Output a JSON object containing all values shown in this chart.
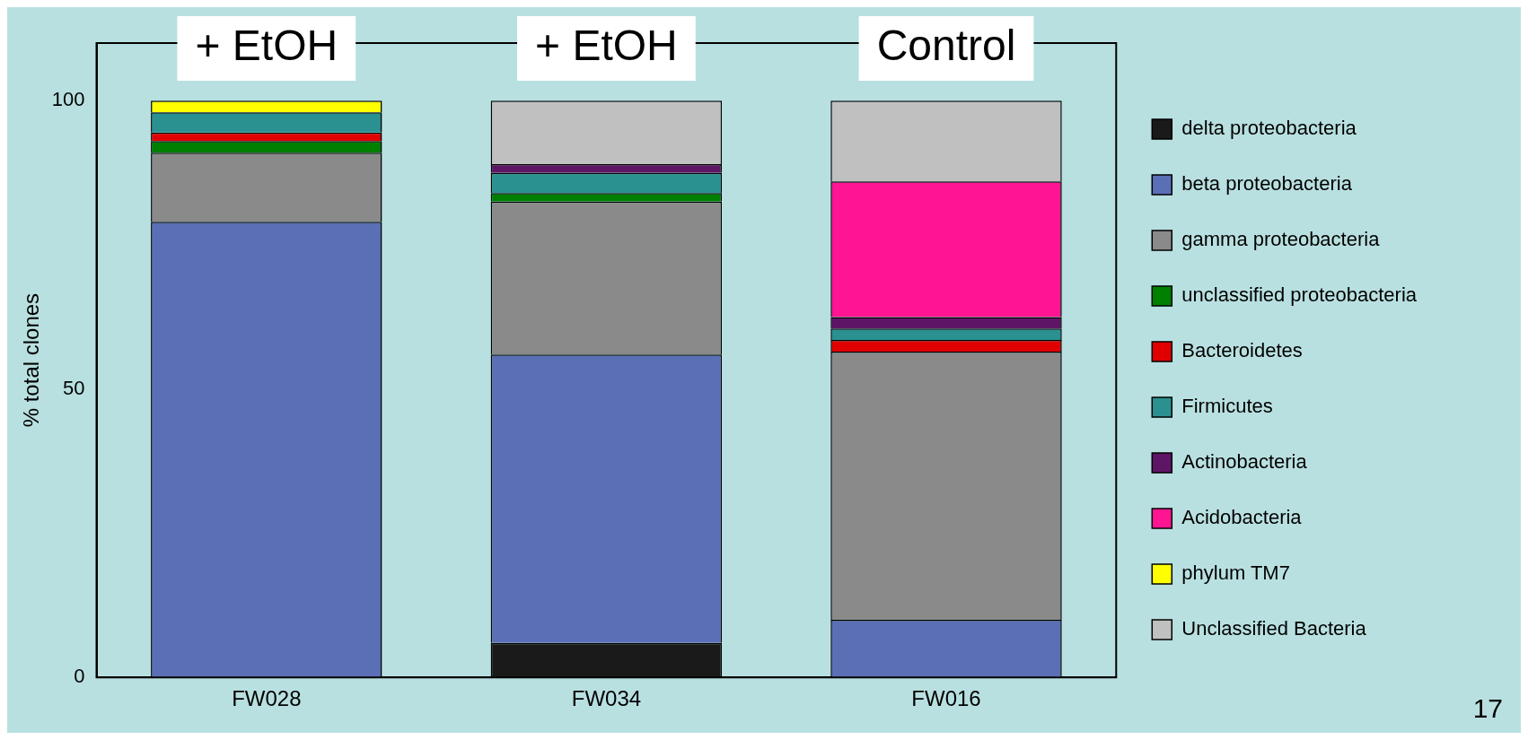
{
  "chart_data": {
    "type": "bar",
    "stacked": true,
    "ylabel": "% total clones",
    "categories": [
      "FW028",
      "FW034",
      "FW016"
    ],
    "series": [
      {
        "name": "delta proteobacteria",
        "color": "#1a1a1a",
        "values": [
          0,
          6,
          0
        ]
      },
      {
        "name": "beta proteobacteria",
        "color": "#5a6fb5",
        "values": [
          79,
          50,
          10
        ]
      },
      {
        "name": "gamma proteobacteria",
        "color": "#8a8a8a",
        "values": [
          12,
          26.5,
          46.5
        ]
      },
      {
        "name": "unclassified proteobacteria",
        "color": "#008000",
        "values": [
          2,
          1.5,
          0
        ]
      },
      {
        "name": "Bacteroidetes",
        "color": "#e00000",
        "values": [
          1.5,
          0,
          2
        ]
      },
      {
        "name": "Firmicutes",
        "color": "#2a9090",
        "values": [
          3.5,
          3.5,
          2
        ]
      },
      {
        "name": "Actinobacteria",
        "color": "#5e1566",
        "values": [
          0,
          1.5,
          2
        ]
      },
      {
        "name": "Acidobacteria",
        "color": "#ff1493",
        "values": [
          0,
          0,
          23.5
        ]
      },
      {
        "name": "phylum TM7",
        "color": "#ffff00",
        "values": [
          2,
          0,
          0
        ]
      },
      {
        "name": "Unclassified Bacteria",
        "color": "#c0c0c0",
        "values": [
          0,
          11,
          14
        ]
      }
    ],
    "ylim": [
      0,
      110
    ],
    "yticks": [
      0,
      50,
      100
    ],
    "grid": false,
    "legend": "right",
    "annotations": [
      "+ EtOH",
      "+ EtOH",
      "Control",
      "17"
    ]
  }
}
